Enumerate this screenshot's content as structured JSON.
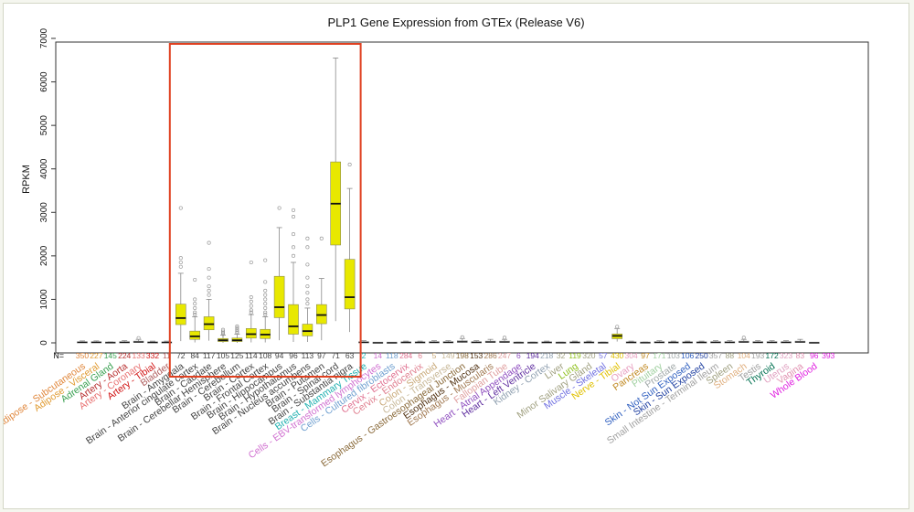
{
  "chart_data": {
    "type": "boxplot",
    "title": "PLP1 Gene Expression from GTEx (Release V6)",
    "xlabel": "",
    "ylabel": "RPKM",
    "ylim": [
      0,
      7000
    ],
    "yticks": [
      0,
      1000,
      2000,
      3000,
      4000,
      5000,
      6000,
      7000
    ],
    "n_label": "N=",
    "grid": false,
    "highlight": {
      "from_category": "Brain - Amygdala",
      "to_category": "Brain - Substantia nigra",
      "color": "#e04020"
    },
    "box_color": "#e8e800",
    "categories": [
      {
        "name": "Adipose - Subcutaneous",
        "n": "350",
        "color": "#e0863a",
        "q1": 5,
        "median": 12,
        "q3": 22,
        "wlo": 0,
        "whi": 45,
        "outliers": []
      },
      {
        "name": "Adipose - Visceral",
        "n": "227",
        "color": "#e09a30",
        "q1": 5,
        "median": 12,
        "q3": 22,
        "wlo": 0,
        "whi": 45,
        "outliers": []
      },
      {
        "name": "Adrenal Gland",
        "n": "145",
        "color": "#38a050",
        "q1": 2,
        "median": 6,
        "q3": 12,
        "wlo": 0,
        "whi": 25,
        "outliers": []
      },
      {
        "name": "Artery - Aorta",
        "n": "224",
        "color": "#b83030",
        "q1": 5,
        "median": 12,
        "q3": 25,
        "wlo": 0,
        "whi": 50,
        "outliers": []
      },
      {
        "name": "Artery - Coronary",
        "n": "133",
        "color": "#e87070",
        "q1": 8,
        "median": 20,
        "q3": 40,
        "wlo": 0,
        "whi": 80,
        "outliers": [
          110
        ]
      },
      {
        "name": "Artery - Tibial",
        "n": "332",
        "color": "#d01010",
        "q1": 5,
        "median": 10,
        "q3": 20,
        "wlo": 0,
        "whi": 40,
        "outliers": []
      },
      {
        "name": "Bladder",
        "n": "11",
        "color": "#b06060",
        "q1": 5,
        "median": 10,
        "q3": 20,
        "wlo": 0,
        "whi": 40,
        "outliers": []
      },
      {
        "name": "Brain - Amygdala",
        "n": "72",
        "color": "#444444",
        "q1": 420,
        "median": 570,
        "q3": 890,
        "wlo": 40,
        "whi": 1600,
        "outliers": [
          1750,
          1850,
          1950,
          3100
        ]
      },
      {
        "name": "Brain - Anterior cingulate cortex",
        "n": "84",
        "color": "#444444",
        "q1": 80,
        "median": 150,
        "q3": 270,
        "wlo": 10,
        "whi": 600,
        "outliers": [
          650,
          700,
          800,
          900,
          1000,
          1450
        ]
      },
      {
        "name": "Brain - Caudate",
        "n": "117",
        "color": "#444444",
        "q1": 300,
        "median": 430,
        "q3": 600,
        "wlo": 50,
        "whi": 1000,
        "outliers": [
          1100,
          1200,
          1300,
          1500,
          1700,
          2300
        ]
      },
      {
        "name": "Brain - Cerebellar Hemisphere",
        "n": "105",
        "color": "#444444",
        "q1": 30,
        "median": 60,
        "q3": 100,
        "wlo": 0,
        "whi": 180,
        "outliers": [
          200,
          230,
          260,
          300
        ]
      },
      {
        "name": "Brain - Cerebellum",
        "n": "125",
        "color": "#444444",
        "q1": 30,
        "median": 60,
        "q3": 110,
        "wlo": 0,
        "whi": 200,
        "outliers": [
          230,
          260,
          300,
          340,
          380
        ]
      },
      {
        "name": "Brain - Cortex",
        "n": "114",
        "color": "#444444",
        "q1": 110,
        "median": 200,
        "q3": 330,
        "wlo": 10,
        "whi": 650,
        "outliers": [
          700,
          750,
          850,
          950,
          1050,
          1850
        ]
      },
      {
        "name": "Brain - Frontal Cortex",
        "n": "108",
        "color": "#444444",
        "q1": 100,
        "median": 190,
        "q3": 310,
        "wlo": 10,
        "whi": 600,
        "outliers": [
          650,
          700,
          800,
          900,
          1000,
          1100,
          1200,
          1400,
          1900
        ]
      },
      {
        "name": "Brain - Hippocampus",
        "n": "94",
        "color": "#444444",
        "q1": 580,
        "median": 820,
        "q3": 1530,
        "wlo": 60,
        "whi": 2650,
        "outliers": [
          3100
        ]
      },
      {
        "name": "Brain - Hypothalamus",
        "n": "96",
        "color": "#444444",
        "q1": 200,
        "median": 380,
        "q3": 880,
        "wlo": 20,
        "whi": 1850,
        "outliers": [
          2000,
          2200,
          2500,
          2900,
          3050
        ]
      },
      {
        "name": "Brain - Nucleus accumbens",
        "n": "113",
        "color": "#444444",
        "q1": 160,
        "median": 270,
        "q3": 430,
        "wlo": 20,
        "whi": 800,
        "outliers": [
          900,
          1000,
          1150,
          1300,
          1500,
          1800,
          2200,
          2400
        ]
      },
      {
        "name": "Brain - Putamen",
        "n": "97",
        "color": "#444444",
        "q1": 440,
        "median": 640,
        "q3": 880,
        "wlo": 60,
        "whi": 1480,
        "outliers": [
          2400
        ]
      },
      {
        "name": "Brain - Spinal cord",
        "n": "71",
        "color": "#444444",
        "q1": 2250,
        "median": 3200,
        "q3": 4160,
        "wlo": 500,
        "whi": 6550,
        "outliers": []
      },
      {
        "name": "Brain - Substantia nigra",
        "n": "63",
        "color": "#444444",
        "q1": 780,
        "median": 1050,
        "q3": 1920,
        "wlo": 250,
        "whi": 3550,
        "outliers": [
          4100
        ]
      },
      {
        "name": "Breast - Mammary Tissue",
        "n": "2",
        "color": "#20b0b0",
        "q1": 5,
        "median": 12,
        "q3": 25,
        "wlo": 0,
        "whi": 50,
        "outliers": []
      },
      {
        "name": "Cells - EBV-transformed lymphocytes",
        "n": "14",
        "color": "#d070d0",
        "q1": 0,
        "median": 2,
        "q3": 5,
        "wlo": 0,
        "whi": 10,
        "outliers": []
      },
      {
        "name": "Cells - Cultured fibroblasts",
        "n": "118",
        "color": "#70a0d0",
        "q1": 0,
        "median": 2,
        "q3": 5,
        "wlo": 0,
        "whi": 10,
        "outliers": []
      },
      {
        "name": "Cervix - Ectocervix",
        "n": "284",
        "color": "#e07090",
        "q1": 5,
        "median": 10,
        "q3": 20,
        "wlo": 0,
        "whi": 40,
        "outliers": []
      },
      {
        "name": "Cervix - Endocervix",
        "n": "6",
        "color": "#e08090",
        "q1": 5,
        "median": 10,
        "q3": 20,
        "wlo": 0,
        "whi": 40,
        "outliers": []
      },
      {
        "name": "Colon - Sigmoid",
        "n": "5",
        "color": "#c8a878",
        "q1": 5,
        "median": 12,
        "q3": 25,
        "wlo": 0,
        "whi": 50,
        "outliers": []
      },
      {
        "name": "Colon - Transverse",
        "n": "149",
        "color": "#c8b898",
        "q1": 5,
        "median": 12,
        "q3": 25,
        "wlo": 0,
        "whi": 50,
        "outliers": []
      },
      {
        "name": "Esophagus - Gastroesophageal Junction",
        "n": "198",
        "color": "#8a6a3a",
        "q1": 10,
        "median": 25,
        "q3": 50,
        "wlo": 0,
        "whi": 100,
        "outliers": [
          130
        ]
      },
      {
        "name": "Esophagus - Mucosa",
        "n": "153",
        "color": "#503010",
        "q1": 5,
        "median": 12,
        "q3": 25,
        "wlo": 0,
        "whi": 50,
        "outliers": []
      },
      {
        "name": "Esophagus - Muscularis",
        "n": "286",
        "color": "#a07850",
        "q1": 10,
        "median": 20,
        "q3": 40,
        "wlo": 0,
        "whi": 80,
        "outliers": []
      },
      {
        "name": "Fallopian Tube",
        "n": "247",
        "color": "#e0a0a0",
        "q1": 10,
        "median": 20,
        "q3": 40,
        "wlo": 0,
        "whi": 80,
        "outliers": [
          120
        ]
      },
      {
        "name": "Heart - Atrial Appendage",
        "n": "6",
        "color": "#9050c0",
        "q1": 2,
        "median": 5,
        "q3": 10,
        "wlo": 0,
        "whi": 20,
        "outliers": []
      },
      {
        "name": "Heart - Left Ventricle",
        "n": "194",
        "color": "#6030a0",
        "q1": 2,
        "median": 5,
        "q3": 10,
        "wlo": 0,
        "whi": 20,
        "outliers": []
      },
      {
        "name": "Kidney - Cortex",
        "n": "218",
        "color": "#90a0b0",
        "q1": 5,
        "median": 10,
        "q3": 20,
        "wlo": 0,
        "whi": 40,
        "outliers": []
      },
      {
        "name": "Liver",
        "n": "32",
        "color": "#a0a080",
        "q1": 2,
        "median": 5,
        "q3": 10,
        "wlo": 0,
        "whi": 20,
        "outliers": []
      },
      {
        "name": "Lung",
        "n": "119",
        "color": "#90c020",
        "q1": 5,
        "median": 10,
        "q3": 20,
        "wlo": 0,
        "whi": 40,
        "outliers": []
      },
      {
        "name": "Minor Salivary Gland",
        "n": "320",
        "color": "#a0a080",
        "q1": 5,
        "median": 10,
        "q3": 20,
        "wlo": 0,
        "whi": 40,
        "outliers": []
      },
      {
        "name": "Muscle - Skeletal",
        "n": "57",
        "color": "#7070e0",
        "q1": 2,
        "median": 5,
        "q3": 10,
        "wlo": 0,
        "whi": 20,
        "outliers": []
      },
      {
        "name": "Nerve - Tibial",
        "n": "430",
        "color": "#e0c000",
        "q1": 95,
        "median": 160,
        "q3": 205,
        "wlo": 30,
        "whi": 330,
        "outliers": [
          370
        ]
      },
      {
        "name": "Ovary",
        "n": "304",
        "color": "#e8a0c0",
        "q1": 5,
        "median": 10,
        "q3": 20,
        "wlo": 0,
        "whi": 40,
        "outliers": []
      },
      {
        "name": "Pancreas",
        "n": "97",
        "color": "#c08820",
        "q1": 2,
        "median": 5,
        "q3": 10,
        "wlo": 0,
        "whi": 20,
        "outliers": []
      },
      {
        "name": "Pituitary",
        "n": "171",
        "color": "#a0d0a0",
        "q1": 5,
        "median": 12,
        "q3": 25,
        "wlo": 0,
        "whi": 50,
        "outliers": []
      },
      {
        "name": "Prostate",
        "n": "103",
        "color": "#a0a8a8",
        "q1": 5,
        "median": 10,
        "q3": 20,
        "wlo": 0,
        "whi": 40,
        "outliers": []
      },
      {
        "name": "Skin - Not Sun Exposed",
        "n": "106",
        "color": "#3060c0",
        "q1": 5,
        "median": 10,
        "q3": 20,
        "wlo": 0,
        "whi": 40,
        "outliers": []
      },
      {
        "name": "Skin - Sun Exposed",
        "n": "250",
        "color": "#2040a0",
        "q1": 5,
        "median": 10,
        "q3": 20,
        "wlo": 0,
        "whi": 40,
        "outliers": []
      },
      {
        "name": "Small Intestine - Terminal Ileum",
        "n": "357",
        "color": "#a0a0a0",
        "q1": 5,
        "median": 12,
        "q3": 25,
        "wlo": 0,
        "whi": 50,
        "outliers": []
      },
      {
        "name": "Spleen",
        "n": "88",
        "color": "#a0a080",
        "q1": 5,
        "median": 12,
        "q3": 25,
        "wlo": 0,
        "whi": 50,
        "outliers": []
      },
      {
        "name": "Stomach",
        "n": "104",
        "color": "#e0b080",
        "q1": 10,
        "median": 20,
        "q3": 40,
        "wlo": 0,
        "whi": 80,
        "outliers": [
          120
        ]
      },
      {
        "name": "Testis",
        "n": "193",
        "color": "#a0a0a0",
        "q1": 5,
        "median": 12,
        "q3": 25,
        "wlo": 0,
        "whi": 50,
        "outliers": []
      },
      {
        "name": "Thyroid",
        "n": "172",
        "color": "#007050",
        "q1": 5,
        "median": 12,
        "q3": 25,
        "wlo": 0,
        "whi": 50,
        "outliers": []
      },
      {
        "name": "Uterus",
        "n": "323",
        "color": "#e0a0c0",
        "q1": 5,
        "median": 12,
        "q3": 25,
        "wlo": 0,
        "whi": 50,
        "outliers": []
      },
      {
        "name": "Vagina",
        "n": "83",
        "color": "#e090b0",
        "q1": 10,
        "median": 20,
        "q3": 40,
        "wlo": 0,
        "whi": 80,
        "outliers": []
      },
      {
        "name": "Whole Blood",
        "n": "96",
        "color": "#e020e0",
        "q1": 0,
        "median": 2,
        "q3": 5,
        "wlo": 0,
        "whi": 10,
        "outliers": []
      }
    ],
    "extra_n_labels": [
      {
        "n": "393",
        "color": "#e020e0"
      }
    ]
  }
}
